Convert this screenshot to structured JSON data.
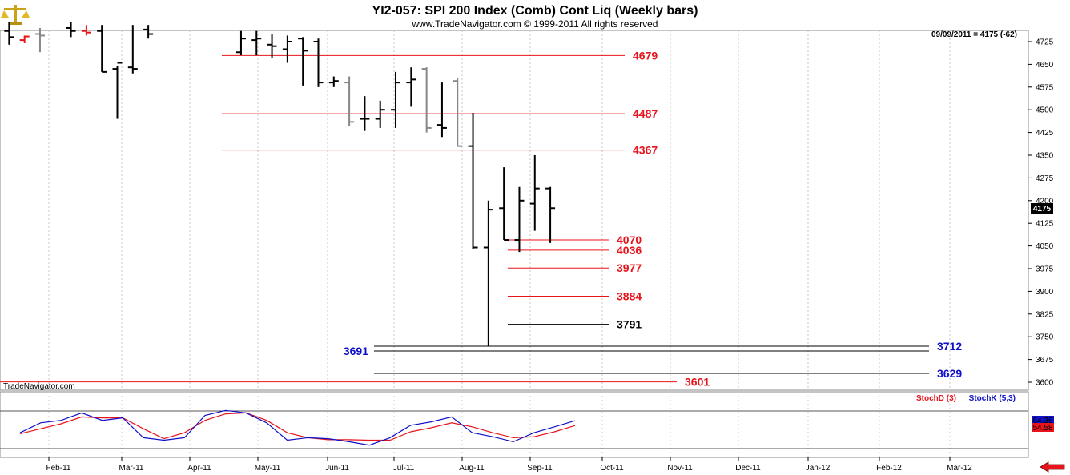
{
  "header": {
    "title": "YI2-057:  SPI 200 Index (Comb) Cont Liq  (Weekly bars)",
    "subtitle": "www.TradeNavigator.com © 1999-2011 All rights reserved",
    "last_price_info": "09/09/2011 = 4175 (-62)",
    "watermark": "TradeNavigator.com",
    "logo_icon": "scales-logo-icon",
    "nav_icon": "red-left-arrow-icon"
  },
  "colors": {
    "up_bar": "#000000",
    "down_bar": "#888888",
    "red_level": "#e8141c",
    "blue_level": "#1010c8",
    "stoch_d": "#e8141c",
    "stoch_k": "#1010c8"
  },
  "chart_data": {
    "type": "ohlc",
    "yticks": [
      4725,
      4650,
      4575,
      4500,
      4425,
      4350,
      4275,
      4200,
      4125,
      4050,
      3975,
      3900,
      3825,
      3750,
      3675,
      3600
    ],
    "ylim": [
      3570,
      4790
    ],
    "current_price_label": "4175",
    "months": [
      "Feb-11",
      "Mar-11",
      "Apr-11",
      "May-11",
      "Jun-11",
      "Jul-11",
      "Aug-11",
      "Sep-11",
      "Oct-11",
      "Nov-11",
      "Dec-11",
      "Jan-12",
      "Feb-12",
      "Mar-12"
    ],
    "bars": [
      {
        "date": "2011-01-14",
        "o": 4760,
        "h": 4790,
        "l": 4715,
        "c": 4740,
        "color": "black"
      },
      {
        "date": "2011-01-21",
        "o": 4730,
        "h": 4745,
        "l": 4720,
        "c": 4742,
        "color": "red"
      },
      {
        "date": "2011-01-28",
        "o": 4750,
        "h": 4770,
        "l": 4690,
        "c": 4745,
        "color": "gray"
      },
      {
        "date": "2011-02-11",
        "o": 4770,
        "h": 4790,
        "l": 4740,
        "c": 4760,
        "color": "black"
      },
      {
        "date": "2011-02-18",
        "o": 4760,
        "h": 4780,
        "l": 4745,
        "c": 4755,
        "color": "red"
      },
      {
        "date": "2011-02-25",
        "o": 4760,
        "h": 4780,
        "l": 4625,
        "c": 4625,
        "color": "black"
      },
      {
        "date": "2011-03-04",
        "o": 4635,
        "h": 4645,
        "l": 4470,
        "c": 4655,
        "color": "black"
      },
      {
        "date": "2011-03-11",
        "o": 4640,
        "h": 4780,
        "l": 4620,
        "c": 4635,
        "color": "black"
      },
      {
        "date": "2011-03-18",
        "o": 4765,
        "h": 4780,
        "l": 4735,
        "c": 4750,
        "color": "black"
      },
      {
        "date": "2011-04-29",
        "o": 4690,
        "h": 4760,
        "l": 4680,
        "c": 4735,
        "color": "black"
      },
      {
        "date": "2011-05-06",
        "o": 4730,
        "h": 4760,
        "l": 4680,
        "c": 4735,
        "color": "black"
      },
      {
        "date": "2011-05-13",
        "o": 4715,
        "h": 4750,
        "l": 4670,
        "c": 4710,
        "color": "black"
      },
      {
        "date": "2011-05-20",
        "o": 4700,
        "h": 4745,
        "l": 4655,
        "c": 4725,
        "color": "black"
      },
      {
        "date": "2011-05-27",
        "o": 4735,
        "h": 4740,
        "l": 4580,
        "c": 4695,
        "color": "black"
      },
      {
        "date": "2011-06-03",
        "o": 4725,
        "h": 4735,
        "l": 4575,
        "c": 4590,
        "color": "black"
      },
      {
        "date": "2011-06-10",
        "o": 4590,
        "h": 4610,
        "l": 4575,
        "c": 4595,
        "color": "black"
      },
      {
        "date": "2011-06-17",
        "o": 4590,
        "h": 4610,
        "l": 4445,
        "c": 4460,
        "color": "gray"
      },
      {
        "date": "2011-06-24",
        "o": 4470,
        "h": 4545,
        "l": 4430,
        "c": 4470,
        "color": "black"
      },
      {
        "date": "2011-07-01",
        "o": 4470,
        "h": 4530,
        "l": 4440,
        "c": 4500,
        "color": "black"
      },
      {
        "date": "2011-07-08",
        "o": 4500,
        "h": 4625,
        "l": 4440,
        "c": 4590,
        "color": "black"
      },
      {
        "date": "2011-07-15",
        "o": 4590,
        "h": 4640,
        "l": 4510,
        "c": 4600,
        "color": "black"
      },
      {
        "date": "2011-07-22",
        "o": 4635,
        "h": 4640,
        "l": 4425,
        "c": 4440,
        "color": "gray"
      },
      {
        "date": "2011-07-29",
        "o": 4450,
        "h": 4590,
        "l": 4410,
        "c": 4440,
        "color": "black"
      },
      {
        "date": "2011-08-05",
        "o": 4595,
        "h": 4605,
        "l": 4380,
        "c": 4380,
        "color": "gray"
      },
      {
        "date": "2011-08-12",
        "o": 4380,
        "h": 4490,
        "l": 4040,
        "c": 4045,
        "color": "black"
      },
      {
        "date": "2011-08-19",
        "o": 4045,
        "h": 4200,
        "l": 3720,
        "c": 4170,
        "color": "black"
      },
      {
        "date": "2011-08-26",
        "o": 4175,
        "h": 4310,
        "l": 4070,
        "c": 4070,
        "color": "black"
      },
      {
        "date": "2011-09-02",
        "o": 4070,
        "h": 4245,
        "l": 4030,
        "c": 4200,
        "color": "black"
      },
      {
        "date": "2011-09-09",
        "o": 4190,
        "h": 4350,
        "l": 4100,
        "c": 4240,
        "color": "black"
      },
      {
        "date": "2011-09-16",
        "o": 4240,
        "h": 4245,
        "l": 4060,
        "c": 4175,
        "color": "black"
      }
    ],
    "levels": [
      {
        "label": "4679",
        "value": 4679,
        "color": "red"
      },
      {
        "label": "4487",
        "value": 4487,
        "color": "red"
      },
      {
        "label": "4367",
        "value": 4367,
        "color": "red"
      },
      {
        "label": "4070",
        "value": 4070,
        "color": "red"
      },
      {
        "label": "4036",
        "value": 4036,
        "color": "red"
      },
      {
        "label": "3977",
        "value": 3977,
        "color": "red"
      },
      {
        "label": "3884",
        "value": 3884,
        "color": "red"
      },
      {
        "label": "3791",
        "value": 3791,
        "color": "black"
      },
      {
        "label": "3712",
        "value": 3712,
        "color": "blue"
      },
      {
        "label": "3691",
        "value": 3691,
        "color": "blue"
      },
      {
        "label": "3629",
        "value": 3629,
        "color": "blue"
      },
      {
        "label": "3601",
        "value": 3601,
        "color": "red"
      }
    ],
    "stochastic": {
      "legend_d": "StochD (3)",
      "legend_k": "StochK (5,3)",
      "k_last_label": "64.36",
      "d_last_label": "54.58",
      "ylim": [
        0,
        100
      ],
      "k": [
        40,
        60,
        65,
        80,
        65,
        70,
        30,
        25,
        30,
        75,
        85,
        80,
        60,
        25,
        30,
        28,
        22,
        15,
        30,
        55,
        62,
        72,
        40,
        32,
        22,
        40,
        52,
        64.36
      ],
      "d": [
        38,
        48,
        58,
        72,
        70,
        70,
        48,
        28,
        40,
        65,
        78,
        80,
        65,
        40,
        30,
        26,
        26,
        25,
        25,
        42,
        50,
        60,
        52,
        40,
        30,
        32,
        42,
        54.58
      ]
    }
  }
}
